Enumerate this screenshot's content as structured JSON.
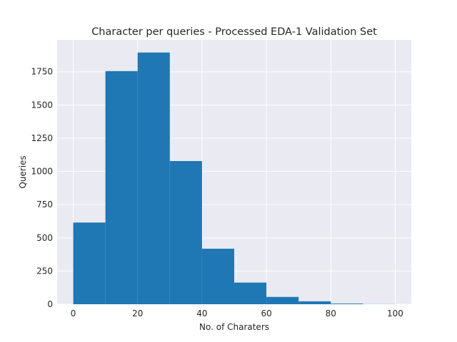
{
  "chart_data": {
    "type": "bar",
    "title": "Character per queries - Processed EDA-1 Validation Set",
    "xlabel": "No. of Charaters",
    "ylabel": "Queries",
    "bins": [
      {
        "x0": 0,
        "x1": 10,
        "value": 615
      },
      {
        "x0": 10,
        "x1": 20,
        "value": 1755
      },
      {
        "x0": 20,
        "x1": 30,
        "value": 1895
      },
      {
        "x0": 30,
        "x1": 40,
        "value": 1078
      },
      {
        "x0": 40,
        "x1": 50,
        "value": 418
      },
      {
        "x0": 50,
        "x1": 60,
        "value": 163
      },
      {
        "x0": 60,
        "x1": 70,
        "value": 55
      },
      {
        "x0": 70,
        "x1": 80,
        "value": 22
      },
      {
        "x0": 80,
        "x1": 90,
        "value": 5
      },
      {
        "x0": 90,
        "x1": 100,
        "value": 1
      }
    ],
    "xlim": [
      -5,
      105
    ],
    "ylim": [
      0,
      1990
    ],
    "xticks": [
      0,
      20,
      40,
      60,
      80,
      100
    ],
    "yticks": [
      0,
      250,
      500,
      750,
      1000,
      1250,
      1500,
      1750
    ],
    "grid": true,
    "colors": {
      "bar": "#1f77b4",
      "background": "#eaeaf2",
      "grid": "#ffffff"
    }
  }
}
